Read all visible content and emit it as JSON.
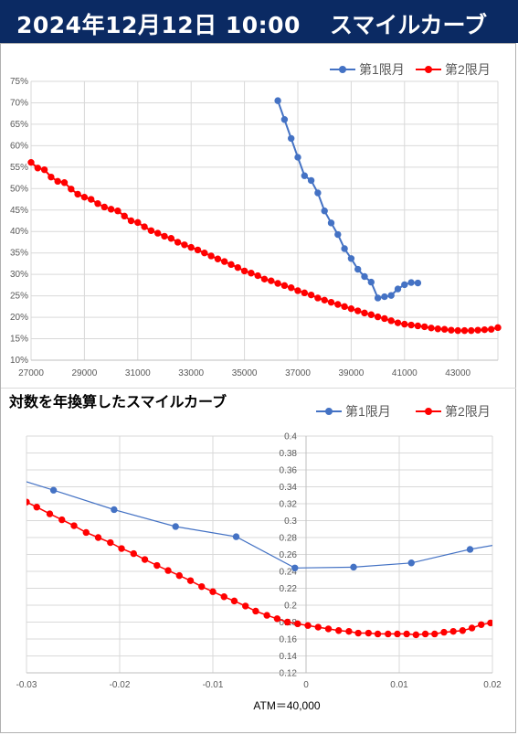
{
  "header": {
    "date": "2024年12月12日 10:00",
    "title": "スマイルカーブ"
  },
  "chart_data": [
    {
      "type": "line",
      "title": "",
      "xlabel": "",
      "ylabel": "",
      "xlim": [
        27000,
        44500
      ],
      "ylim": [
        0.1,
        0.75
      ],
      "xticks": [
        27000,
        29000,
        31000,
        33000,
        35000,
        37000,
        39000,
        41000,
        43000
      ],
      "xtick_labels": [
        "27000",
        "29000",
        "31000",
        "33000",
        "35000",
        "37000",
        "39000",
        "41000",
        "43000"
      ],
      "yticks": [
        0.1,
        0.15,
        0.2,
        0.25,
        0.3,
        0.35,
        0.4,
        0.45,
        0.5,
        0.55,
        0.6,
        0.65,
        0.7,
        0.75
      ],
      "ytick_labels": [
        "10%",
        "15%",
        "20%",
        "25%",
        "30%",
        "35%",
        "40%",
        "45%",
        "50%",
        "55%",
        "60%",
        "65%",
        "70%",
        "75%"
      ],
      "grid": "both",
      "legend": "top-right",
      "series": [
        {
          "name": "第1限月",
          "color": "#4472c4",
          "x": [
            36250,
            36500,
            36750,
            37000,
            37250,
            37500,
            37750,
            38000,
            38250,
            38500,
            38750,
            39000,
            39250,
            39500,
            39750,
            40000,
            40250,
            40500,
            40750,
            41000,
            41250,
            41500
          ],
          "y": [
            0.705,
            0.661,
            0.617,
            0.573,
            0.53,
            0.519,
            0.49,
            0.448,
            0.42,
            0.393,
            0.36,
            0.337,
            0.312,
            0.295,
            0.282,
            0.245,
            0.248,
            0.251,
            0.266,
            0.276,
            0.281,
            0.28
          ]
        },
        {
          "name": "第2限月",
          "color": "#ff0000",
          "x": [
            27000,
            27250,
            27500,
            27750,
            28000,
            28250,
            28500,
            28750,
            29000,
            29250,
            29500,
            29750,
            30000,
            30250,
            30500,
            30750,
            31000,
            31250,
            31500,
            31750,
            32000,
            32250,
            32500,
            32750,
            33000,
            33250,
            33500,
            33750,
            34000,
            34250,
            34500,
            34750,
            35000,
            35250,
            35500,
            35750,
            36000,
            36250,
            36500,
            36750,
            37000,
            37250,
            37500,
            37750,
            38000,
            38250,
            38500,
            38750,
            39000,
            39250,
            39500,
            39750,
            40000,
            40250,
            40500,
            40750,
            41000,
            41250,
            41500,
            41750,
            42000,
            42250,
            42500,
            42750,
            43000,
            43250,
            43500,
            43750,
            44000,
            44250,
            44500
          ],
          "y": [
            0.561,
            0.548,
            0.544,
            0.527,
            0.517,
            0.514,
            0.499,
            0.487,
            0.48,
            0.475,
            0.465,
            0.457,
            0.452,
            0.448,
            0.436,
            0.425,
            0.421,
            0.411,
            0.402,
            0.396,
            0.389,
            0.384,
            0.375,
            0.369,
            0.363,
            0.357,
            0.35,
            0.343,
            0.336,
            0.33,
            0.323,
            0.316,
            0.308,
            0.303,
            0.297,
            0.289,
            0.285,
            0.279,
            0.274,
            0.269,
            0.262,
            0.257,
            0.252,
            0.245,
            0.24,
            0.235,
            0.23,
            0.225,
            0.22,
            0.215,
            0.21,
            0.206,
            0.201,
            0.197,
            0.192,
            0.187,
            0.184,
            0.182,
            0.18,
            0.178,
            0.175,
            0.173,
            0.172,
            0.17,
            0.169,
            0.169,
            0.169,
            0.17,
            0.171,
            0.172,
            0.176
          ]
        }
      ]
    },
    {
      "type": "scatter",
      "title": "対数を年換算したスマイルカーブ",
      "xlabel": "ATM＝40,000",
      "ylabel": "",
      "xlim": [
        -0.03,
        0.02
      ],
      "ylim": [
        0.12,
        0.4
      ],
      "xticks": [
        -0.03,
        -0.02,
        -0.01,
        0,
        0.01,
        0.02
      ],
      "xtick_labels": [
        "-0.03",
        "-0.02",
        "-0.01",
        "0",
        "0.01",
        "0.02"
      ],
      "yticks": [
        0.12,
        0.14,
        0.16,
        0.18,
        0.2,
        0.22,
        0.24,
        0.26,
        0.28,
        0.3,
        0.32,
        0.34,
        0.36,
        0.38,
        0.4
      ],
      "ytick_labels": [
        "0.12",
        "0.14",
        "0.16",
        "0.18",
        "0.2",
        "0.22",
        "0.24",
        "0.26",
        "0.28",
        "0.3",
        "0.32",
        "0.34",
        "0.36",
        "0.38",
        "0.4"
      ],
      "grid": "both",
      "legend": "top-right",
      "series": [
        {
          "name": "第1限月",
          "color": "#4472c4",
          "x": [
            -0.0332,
            -0.0271,
            -0.0206,
            -0.014,
            -0.0075,
            -0.0012,
            0.0051,
            0.0113,
            0.0176,
            0.0238
          ],
          "y": [
            0.357,
            0.336,
            0.313,
            0.293,
            0.281,
            0.244,
            0.245,
            0.25,
            0.266,
            0.278
          ]
        },
        {
          "name": "第2限月",
          "color": "#ff0000",
          "x": [
            -0.03,
            -0.0289,
            -0.0275,
            -0.0262,
            -0.0249,
            -0.0236,
            -0.0223,
            -0.021,
            -0.0198,
            -0.0185,
            -0.0173,
            -0.016,
            -0.0148,
            -0.0136,
            -0.0124,
            -0.0112,
            -0.01,
            -0.0088,
            -0.0077,
            -0.0065,
            -0.0054,
            -0.0042,
            -0.0031,
            -0.002,
            -0.0009,
            0.0002,
            0.0013,
            0.0024,
            0.0035,
            0.0046,
            0.0056,
            0.0067,
            0.0077,
            0.0088,
            0.0098,
            0.0108,
            0.0118,
            0.0128,
            0.0138,
            0.0148,
            0.0158,
            0.0168,
            0.0178,
            0.0188,
            0.0198
          ],
          "y": [
            0.322,
            0.316,
            0.308,
            0.301,
            0.294,
            0.286,
            0.28,
            0.274,
            0.267,
            0.261,
            0.254,
            0.247,
            0.241,
            0.235,
            0.229,
            0.222,
            0.216,
            0.21,
            0.205,
            0.199,
            0.193,
            0.188,
            0.184,
            0.18,
            0.178,
            0.176,
            0.174,
            0.172,
            0.17,
            0.169,
            0.167,
            0.167,
            0.166,
            0.166,
            0.166,
            0.166,
            0.165,
            0.166,
            0.166,
            0.168,
            0.169,
            0.17,
            0.173,
            0.177,
            0.179
          ]
        }
      ]
    }
  ]
}
